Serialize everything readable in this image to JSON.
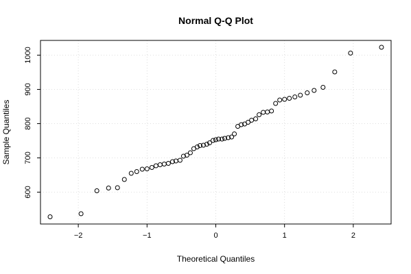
{
  "chart_data": {
    "type": "scatter",
    "title": "Normal Q-Q Plot",
    "xlabel": "Theoretical Quantiles",
    "ylabel": "Sample Quantiles",
    "xlim": [
      -2.55,
      2.55
    ],
    "ylim": [
      507,
      1043
    ],
    "grid": true,
    "x_ticks": [
      -2,
      -1,
      0,
      1,
      2
    ],
    "x_tick_labels": [
      "−2",
      "−1",
      "0",
      "1",
      "2"
    ],
    "y_ticks": [
      600,
      700,
      800,
      900,
      1000
    ],
    "y_tick_labels": [
      "600",
      "700",
      "800",
      "900",
      "1000"
    ],
    "series": [
      {
        "points": [
          [
            -2.41,
            528
          ],
          [
            -1.96,
            537
          ],
          [
            -1.73,
            604
          ],
          [
            -1.56,
            612
          ],
          [
            -1.43,
            613
          ],
          [
            -1.33,
            637
          ],
          [
            -1.23,
            655
          ],
          [
            -1.15,
            660
          ],
          [
            -1.07,
            667
          ],
          [
            -1.0,
            668
          ],
          [
            -0.93,
            672
          ],
          [
            -0.87,
            677
          ],
          [
            -0.81,
            680
          ],
          [
            -0.75,
            682
          ],
          [
            -0.69,
            684
          ],
          [
            -0.63,
            689
          ],
          [
            -0.58,
            691
          ],
          [
            -0.52,
            693
          ],
          [
            -0.47,
            705
          ],
          [
            -0.42,
            708
          ],
          [
            -0.37,
            715
          ],
          [
            -0.32,
            727
          ],
          [
            -0.27,
            732
          ],
          [
            -0.23,
            736
          ],
          [
            -0.18,
            737
          ],
          [
            -0.13,
            740
          ],
          [
            -0.09,
            744
          ],
          [
            -0.04,
            751
          ],
          [
            0.0,
            753
          ],
          [
            0.04,
            755
          ],
          [
            0.09,
            755
          ],
          [
            0.13,
            757
          ],
          [
            0.18,
            759
          ],
          [
            0.23,
            761
          ],
          [
            0.27,
            770
          ],
          [
            0.32,
            792
          ],
          [
            0.37,
            797
          ],
          [
            0.42,
            799
          ],
          [
            0.47,
            804
          ],
          [
            0.52,
            810
          ],
          [
            0.58,
            814
          ],
          [
            0.63,
            826
          ],
          [
            0.69,
            833
          ],
          [
            0.75,
            834
          ],
          [
            0.81,
            837
          ],
          [
            0.87,
            859
          ],
          [
            0.93,
            869
          ],
          [
            1.0,
            871
          ],
          [
            1.07,
            874
          ],
          [
            1.15,
            878
          ],
          [
            1.23,
            883
          ],
          [
            1.33,
            890
          ],
          [
            1.43,
            897
          ],
          [
            1.56,
            906
          ],
          [
            1.73,
            951
          ],
          [
            1.96,
            1006
          ],
          [
            2.41,
            1023
          ]
        ]
      }
    ]
  }
}
